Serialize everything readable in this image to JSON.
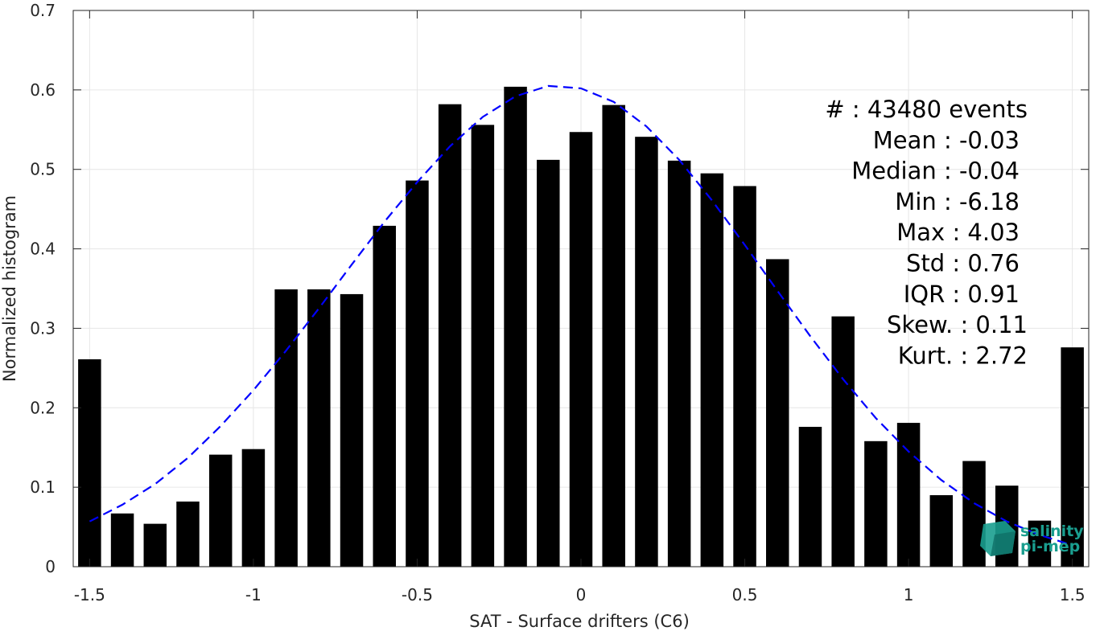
{
  "chart_data": {
    "type": "bar",
    "xlabel": "SAT - Surface drifters (C6)",
    "ylabel": "Normalized histogram",
    "xlim": [
      -1.55,
      1.55
    ],
    "ylim": [
      0,
      0.7
    ],
    "x_ticks": [
      -1.5,
      -1,
      -0.5,
      0,
      0.5,
      1,
      1.5
    ],
    "x_tick_labels": [
      "-1.5",
      "-1",
      "-0.5",
      "0",
      "0.5",
      "1",
      "1.5"
    ],
    "y_ticks": [
      0,
      0.1,
      0.2,
      0.3,
      0.4,
      0.5,
      0.6,
      0.7
    ],
    "y_tick_labels": [
      "0",
      "0.1",
      "0.2",
      "0.3",
      "0.4",
      "0.5",
      "0.6",
      "0.7"
    ],
    "grid": true,
    "bar_color": "#000000",
    "bar_width": 0.07,
    "bins": {
      "x": [
        -1.5,
        -1.4,
        -1.3,
        -1.2,
        -1.1,
        -1.0,
        -0.9,
        -0.8,
        -0.7,
        -0.6,
        -0.5,
        -0.4,
        -0.3,
        -0.2,
        -0.1,
        0.0,
        0.1,
        0.2,
        0.3,
        0.4,
        0.5,
        0.6,
        0.7,
        0.8,
        0.9,
        1.0,
        1.1,
        1.2,
        1.3,
        1.4,
        1.5
      ],
      "values": [
        0.261,
        0.067,
        0.054,
        0.082,
        0.141,
        0.148,
        0.349,
        0.349,
        0.343,
        0.429,
        0.486,
        0.582,
        0.556,
        0.604,
        0.512,
        0.547,
        0.581,
        0.541,
        0.511,
        0.495,
        0.479,
        0.387,
        0.176,
        0.315,
        0.158,
        0.181,
        0.09,
        0.133,
        0.102,
        0.058,
        0.276
      ]
    },
    "fit_curve": {
      "style": "dashed",
      "color": "#0000FF",
      "x": [
        -1.5,
        -1.4,
        -1.3,
        -1.2,
        -1.1,
        -1.0,
        -0.9,
        -0.8,
        -0.7,
        -0.6,
        -0.5,
        -0.4,
        -0.3,
        -0.2,
        -0.1,
        0.0,
        0.1,
        0.2,
        0.3,
        0.4,
        0.5,
        0.6,
        0.7,
        0.8,
        0.9,
        1.0,
        1.1,
        1.2,
        1.3,
        1.4,
        1.5
      ],
      "y": [
        0.057,
        0.078,
        0.104,
        0.137,
        0.177,
        0.222,
        0.272,
        0.325,
        0.38,
        0.434,
        0.484,
        0.529,
        0.566,
        0.592,
        0.605,
        0.602,
        0.585,
        0.554,
        0.512,
        0.461,
        0.405,
        0.347,
        0.29,
        0.236,
        0.187,
        0.145,
        0.109,
        0.08,
        0.057,
        0.04,
        0.027
      ]
    },
    "stats": [
      "#  : 43480 events",
      "Mean : -0.03",
      "Median : -0.04",
      "Min : -6.18",
      "Max : 4.03",
      "Std : 0.76",
      "IQR : 0.91",
      "Skew. : 0.11",
      "Kurt. : 2.72"
    ]
  },
  "logo": {
    "line1": "salinity",
    "line2": "pi-mep",
    "color": "#1A9E8F"
  }
}
